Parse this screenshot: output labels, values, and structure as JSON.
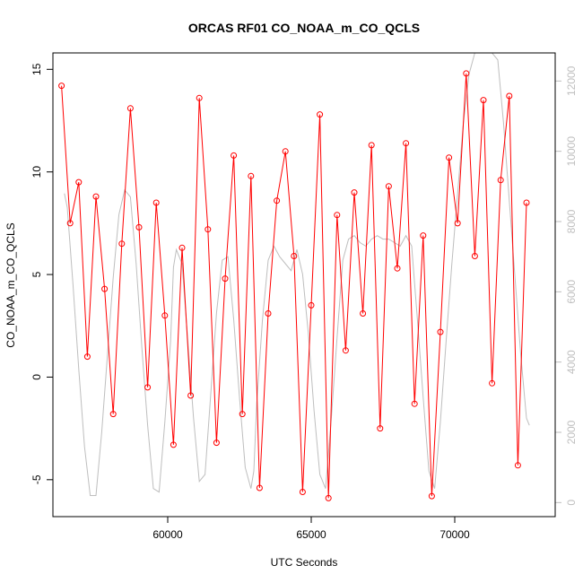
{
  "chart_data": {
    "type": "line",
    "title": "ORCAS RF01 CO_NOAA_m_CO_QCLS",
    "xlabel": "UTC Seconds",
    "ylabel": "CO_NOAA_m_CO_QCLS",
    "xlim": [
      56000,
      73500
    ],
    "ylim": [
      -6.8,
      15.8
    ],
    "x_ticks": [
      60000,
      65000,
      70000
    ],
    "y_ticks": [
      -5,
      0,
      5,
      10,
      15
    ],
    "y2lim": [
      -400,
      12800
    ],
    "y2_ticks": [
      0,
      2000,
      4000,
      6000,
      8000,
      10000,
      12000
    ],
    "grid": false,
    "colors": {
      "difference": "#ff0000",
      "altitude": "#bebebe"
    },
    "series": [
      {
        "role": "difference",
        "style": "line+open-circles",
        "x": [
          56300,
          56600,
          56900,
          57200,
          57500,
          57800,
          58100,
          58400,
          58700,
          59000,
          59300,
          59600,
          59900,
          60200,
          60500,
          60800,
          61100,
          61400,
          61700,
          62000,
          62300,
          62600,
          62900,
          63200,
          63500,
          63800,
          64100,
          64400,
          64700,
          65000,
          65300,
          65600,
          65900,
          66200,
          66500,
          66800,
          67100,
          67400,
          67700,
          68000,
          68300,
          68600,
          68900,
          69200,
          69500,
          69800,
          70100,
          70400,
          70700,
          71000,
          71300,
          71600,
          71900,
          72200,
          72500
        ],
        "values": [
          14.2,
          7.5,
          9.5,
          1.0,
          8.8,
          4.3,
          -1.8,
          6.5,
          13.1,
          7.3,
          -0.5,
          8.5,
          3.0,
          -3.3,
          6.3,
          -0.9,
          13.6,
          7.2,
          -3.2,
          4.8,
          10.8,
          -1.8,
          9.8,
          -5.4,
          3.1,
          8.6,
          11.0,
          5.9,
          -5.6,
          3.5,
          12.8,
          -5.9,
          7.9,
          1.3,
          9.0,
          3.1,
          11.3,
          -2.5,
          9.3,
          5.3,
          11.4,
          -1.3,
          6.9,
          -5.8,
          2.2,
          10.7,
          7.5,
          14.8,
          5.9,
          13.5,
          -0.3,
          9.6,
          13.7,
          -4.3,
          8.5
        ]
      },
      {
        "role": "altitude",
        "style": "line",
        "x": [
          56400,
          56500,
          56700,
          56900,
          57100,
          57300,
          57500,
          57700,
          57900,
          58100,
          58300,
          58500,
          58700,
          58900,
          59100,
          59300,
          59500,
          59700,
          59900,
          60100,
          60200,
          60300,
          60500,
          60700,
          60900,
          61100,
          61300,
          61500,
          61700,
          61900,
          62100,
          62300,
          62500,
          62700,
          62900,
          63000,
          63100,
          63300,
          63500,
          63700,
          63900,
          64100,
          64300,
          64500,
          64700,
          64900,
          65100,
          65300,
          65500,
          65700,
          65900,
          66100,
          66300,
          66500,
          66700,
          66900,
          67100,
          67300,
          67500,
          67700,
          67900,
          68100,
          68300,
          68500,
          68700,
          68900,
          69100,
          69300,
          69500,
          69700,
          69900,
          70100,
          70300,
          70500,
          70700,
          70900,
          71100,
          71300,
          71500,
          71700,
          71900,
          72100,
          72300,
          72500,
          72600
        ],
        "values": [
          8800,
          8400,
          6200,
          3800,
          1600,
          200,
          200,
          2000,
          4200,
          6400,
          8200,
          8900,
          8700,
          6800,
          4400,
          2200,
          400,
          300,
          2300,
          4600,
          6700,
          7200,
          6800,
          4600,
          2400,
          600,
          800,
          3100,
          5400,
          6900,
          7000,
          5200,
          3000,
          1000,
          400,
          900,
          2800,
          5200,
          6900,
          7300,
          7000,
          6800,
          6600,
          7200,
          6500,
          4800,
          2600,
          800,
          400,
          2400,
          4700,
          6900,
          7500,
          7600,
          7400,
          7300,
          7500,
          7600,
          7500,
          7500,
          7400,
          7300,
          7600,
          7300,
          5200,
          3000,
          900,
          400,
          2300,
          4600,
          6800,
          8800,
          10800,
          12200,
          12800,
          12800,
          12800,
          12800,
          12600,
          10800,
          8600,
          6400,
          4200,
          2400,
          2200
        ]
      }
    ]
  }
}
